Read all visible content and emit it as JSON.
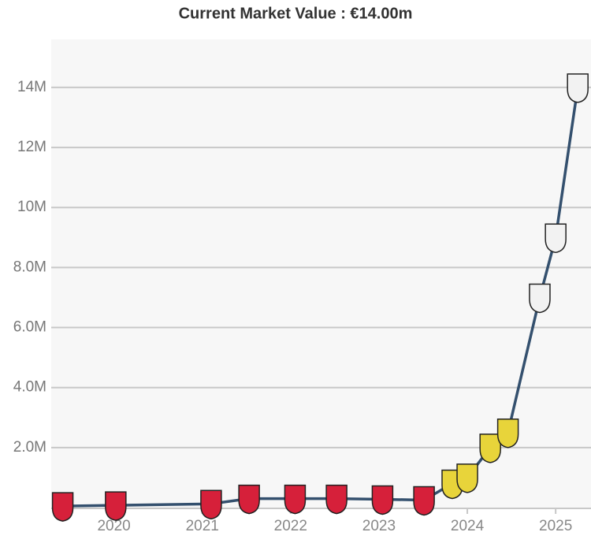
{
  "chart_data": {
    "type": "line",
    "title": "Current Market Value : €14.00m",
    "x": [
      2019.42,
      2020.02,
      2021.1,
      2021.53,
      2022.05,
      2022.52,
      2023.04,
      2023.51,
      2023.83,
      2024.0,
      2024.26,
      2024.46,
      2024.82,
      2025.0,
      2025.25
    ],
    "values": [
      0.05,
      0.075,
      0.125,
      0.3,
      0.3,
      0.3,
      0.275,
      0.25,
      0.8,
      1.0,
      2.0,
      2.5,
      7.0,
      9.0,
      14.0
    ],
    "color": "#34506e",
    "point_colors": [
      "#d6203a",
      "#d6203a",
      "#d6203a",
      "#d6203a",
      "#d6203a",
      "#d6203a",
      "#d6203a",
      "#d6203a",
      "#e8d43a",
      "#e8d43a",
      "#e8d43a",
      "#e8d43a",
      "#f2f2f2",
      "#f2f2f2",
      "#f2f2f2"
    ],
    "xlim": [
      2019.29,
      2025.4
    ],
    "xticks": [
      2020,
      2021,
      2022,
      2023,
      2024,
      2025
    ],
    "ylim": [
      0,
      15.6
    ],
    "yticks": [
      {
        "value": 2,
        "label": "2.0M"
      },
      {
        "value": 4,
        "label": "4.0M"
      },
      {
        "value": 6,
        "label": "6.0M"
      },
      {
        "value": 8,
        "label": "8.0M"
      },
      {
        "value": 10,
        "label": "10M"
      },
      {
        "value": 12,
        "label": "12M"
      },
      {
        "value": 14,
        "label": "14M"
      }
    ],
    "grid": true
  }
}
